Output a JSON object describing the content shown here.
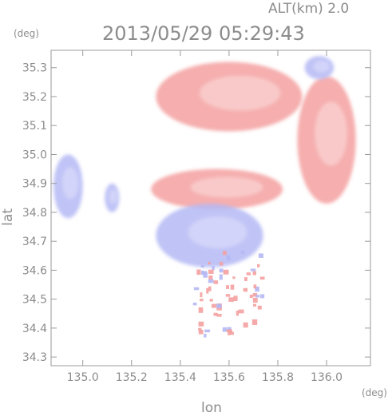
{
  "header": {
    "altitude_label": "ALT(km) 2.0",
    "timestamp": "2013/05/29 05:29:43"
  },
  "chart_data": {
    "type": "heatmap",
    "title": "2013/05/29 05:29:43",
    "subtitle": "ALT(km) 2.0",
    "xlabel": "lon",
    "ylabel": "lat",
    "x_unit": "(deg)",
    "y_unit": "(deg)",
    "xlim": [
      134.87,
      136.18
    ],
    "ylim": [
      34.27,
      35.36
    ],
    "x_ticks": [
      135.0,
      135.2,
      135.4,
      135.6,
      135.8,
      136.0
    ],
    "x_tick_labels": [
      "135.0",
      "135.2",
      "135.4",
      "135.6",
      "135.8",
      "136.0"
    ],
    "y_ticks": [
      34.3,
      34.4,
      34.5,
      34.6,
      34.7,
      34.8,
      34.9,
      35.0,
      35.1,
      35.2,
      35.3
    ],
    "y_tick_labels": [
      "34.3",
      "34.4",
      "34.5",
      "34.6",
      "34.7",
      "34.8",
      "34.9",
      "35.0",
      "35.1",
      "35.2",
      "35.3"
    ],
    "colors": {
      "positive": "#f4a0a0",
      "positive_light": "#fbd6d6",
      "negative": "#b4b8f4",
      "negative_light": "#dcdcfb",
      "axis": "#9a9a9a",
      "text": "#8c8c8c"
    },
    "regions": [
      {
        "sign": "positive",
        "lon": 135.6,
        "lat": 35.2,
        "rlon": 0.3,
        "rlat": 0.12
      },
      {
        "sign": "positive",
        "lon": 136.0,
        "lat": 35.05,
        "rlon": 0.12,
        "rlat": 0.22
      },
      {
        "sign": "positive",
        "lon": 135.55,
        "lat": 34.88,
        "rlon": 0.27,
        "rlat": 0.07
      },
      {
        "sign": "negative",
        "lon": 135.52,
        "lat": 34.72,
        "rlon": 0.22,
        "rlat": 0.11
      },
      {
        "sign": "negative",
        "lon": 134.94,
        "lat": 34.89,
        "rlon": 0.06,
        "rlat": 0.11
      },
      {
        "sign": "negative",
        "lon": 135.12,
        "lat": 34.85,
        "rlon": 0.03,
        "rlat": 0.05
      },
      {
        "sign": "negative",
        "lon": 135.97,
        "lat": 35.3,
        "rlon": 0.06,
        "rlat": 0.04
      }
    ]
  }
}
